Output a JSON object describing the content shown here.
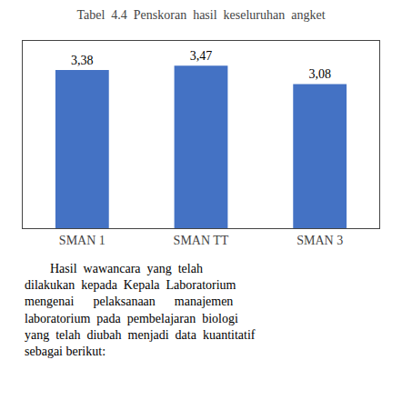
{
  "chart_data": {
    "type": "bar",
    "title": "Tabel  4.4  Penskoran  hasil  keseluruhan  angket",
    "categories": [
      "SMAN 1",
      "SMAN TT",
      "SMAN 3"
    ],
    "values": [
      3.38,
      3.47,
      3.08
    ],
    "value_labels": [
      "3,38",
      "3,47",
      "3,08"
    ],
    "color": "#4472C4",
    "ylim": [
      0,
      4.0
    ],
    "yticks": [],
    "grid": false,
    "data_labels": true,
    "tick_labels": "x",
    "annotations": [
      "        Hasil  wawancara  yang  telah",
      "dilakukan  kepada  Kepala  Laboratorium",
      "mengenai      pelaksanaan      manajemen",
      "laboratorium  pada  pembelajaran  biologi",
      "yang  telah  diubah  menjadi  data  kuantitatif",
      "sebagai berikut:"
    ]
  }
}
